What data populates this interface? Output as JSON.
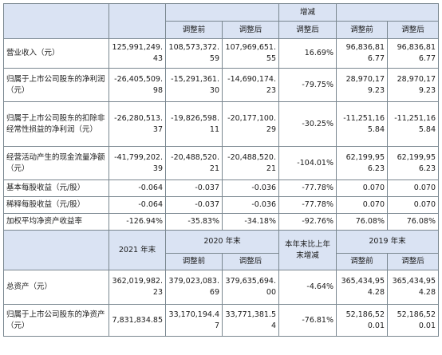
{
  "header": {
    "change_label": "增减",
    "before_adj": "调整前",
    "after_adj": "调整后"
  },
  "rows": [
    {
      "label": "营业收入（元）",
      "v2021": "125,991,249.43",
      "v2020_before": "108,573,372.59",
      "v2020_after": "107,969,651.55",
      "change": "16.69%",
      "v2019_before": "96,836,816.77",
      "v2019_after": "96,836,816.77"
    },
    {
      "label": "归属于上市公司股东的净利润（元）",
      "v2021": "-26,405,509.98",
      "v2020_before": "-15,291,361.30",
      "v2020_after": "-14,690,174.23",
      "change": "-79.75%",
      "v2019_before": "28,970,179.23",
      "v2019_after": "28,970,179.23"
    },
    {
      "label": "归属于上市公司股东的扣除非经常性损益的净利润（元）",
      "v2021": "-26,280,513.37",
      "v2020_before": "-19,826,598.11",
      "v2020_after": "-20,177,100.29",
      "change": "-30.25%",
      "v2019_before": "-11,251,165.84",
      "v2019_after": "-11,251,165.84"
    },
    {
      "label": "经营活动产生的现金流量净额（元）",
      "v2021": "-41,799,202.39",
      "v2020_before": "-20,488,520.21",
      "v2020_after": "-20,488,520.21",
      "change": "-104.01%",
      "v2019_before": "62,199,956.23",
      "v2019_after": "62,199,956.23"
    },
    {
      "label": "基本每股收益（元/股）",
      "v2021": "-0.064",
      "v2020_before": "-0.037",
      "v2020_after": "-0.036",
      "change": "-77.78%",
      "v2019_before": "0.070",
      "v2019_after": "0.070"
    },
    {
      "label": "稀释每股收益（元/股）",
      "v2021": "-0.064",
      "v2020_before": "-0.037",
      "v2020_after": "-0.036",
      "change": "-77.78%",
      "v2019_before": "0.070",
      "v2019_after": "0.070"
    },
    {
      "label": "加权平均净资产收益率",
      "v2021": "-126.94%",
      "v2020_before": "-35.83%",
      "v2020_after": "-34.18%",
      "change": "-92.76%",
      "v2019_before": "76.08%",
      "v2019_after": "76.08%"
    }
  ],
  "header2": {
    "y2021": "2021 年末",
    "y2020": "2020 年末",
    "change": "本年末比上年末增减",
    "y2019": "2019 年末",
    "before_adj": "调整前",
    "after_adj": "调整后"
  },
  "rows2": [
    {
      "label": "总资产（元）",
      "v2021": "362,019,982.23",
      "v2020_before": "379,023,083.69",
      "v2020_after": "379,635,694.00",
      "change": "-4.64%",
      "v2019_before": "365,434,954.28",
      "v2019_after": "365,434,954.28"
    },
    {
      "label": "归属于上市公司股东的净资产（元）",
      "v2021": "7,831,834.85",
      "v2020_before": "33,170,194.47",
      "v2020_after": "33,771,381.54",
      "change": "-76.81%",
      "v2019_before": "52,186,520.01",
      "v2019_after": "52,186,520.01"
    }
  ]
}
